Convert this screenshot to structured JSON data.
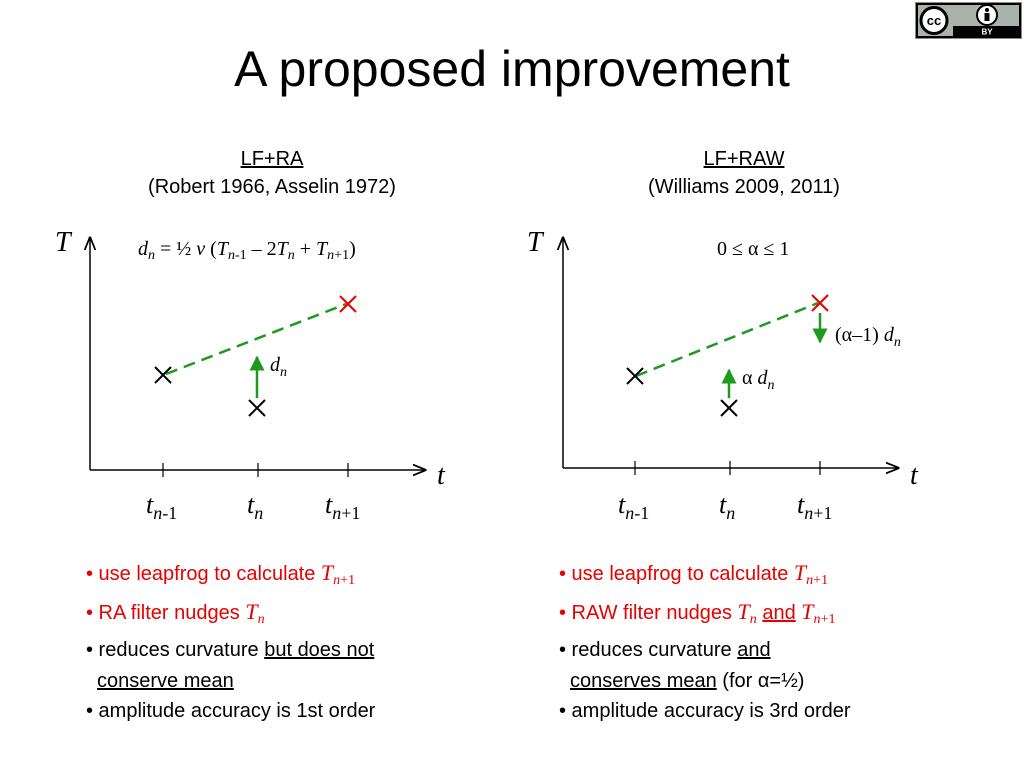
{
  "title": "A proposed improvement",
  "license": {
    "cc": "cc",
    "by": "BY",
    "icon": "person-icon"
  },
  "left": {
    "name": "LF+RA",
    "citation": "(Robert 1966, Asselin 1972)",
    "y_axis_label": "T",
    "x_axis_label": "t",
    "formula": {
      "d": "d",
      "n": "n",
      "eq": " = ½ ",
      "nu": "ν",
      "open": " (",
      "T1": "T",
      "nm1": "n",
      "m1": "-1",
      "minus": " – 2",
      "T2": "T",
      "n2": "n",
      "plus": " + ",
      "T3": "T",
      "n3": "n",
      "p1": "+1",
      "close": ")"
    },
    "arrow_label": {
      "d": "d",
      "n": "n"
    },
    "ticks": [
      {
        "t": "t",
        "n": "n",
        "suffix": "-1"
      },
      {
        "t": "t",
        "n": "n",
        "suffix": ""
      },
      {
        "t": "t",
        "n": "n",
        "suffix": "+1"
      }
    ],
    "bullets": {
      "b1": "• use leapfrog to calculate ",
      "b1_T": "T",
      "b1_n": "n",
      "b1_s": "+1",
      "b2": "• RA filter nudges ",
      "b2_T": "T",
      "b2_n": "n",
      "b3": "• reduces curvature ",
      "b3_u": "but does not",
      "b3b_u": "conserve mean",
      "b4": "• amplitude accuracy is 1st order"
    }
  },
  "right": {
    "name": "LF+RAW",
    "citation": "(Williams 2009, 2011)",
    "y_axis_label": "T",
    "x_axis_label": "t",
    "formula": "0 ≤ α ≤ 1",
    "upper_label": {
      "text": "(α–1) ",
      "d": "d",
      "n": "n"
    },
    "lower_label": {
      "text": "α ",
      "d": "d",
      "n": "n"
    },
    "ticks": [
      {
        "t": "t",
        "n": "n",
        "suffix": "-1"
      },
      {
        "t": "t",
        "n": "n",
        "suffix": ""
      },
      {
        "t": "t",
        "n": "n",
        "suffix": "+1"
      }
    ],
    "bullets": {
      "b1": "• use leapfrog to calculate ",
      "b1_T": "T",
      "b1_n": "n",
      "b1_s": "+1",
      "b2": "• RAW filter nudges ",
      "b2_T": "T",
      "b2_n": "n",
      "b2_and": "and",
      "b2_T2": "T",
      "b2_n2": "n",
      "b2_s2": "+1",
      "b3": "• reduces curvature ",
      "b3_u": "and",
      "b3b_u": "conserves mean",
      "b3b_rest": " (for α=½)",
      "b4": "• amplitude accuracy is 3rd order"
    }
  },
  "colors": {
    "dashed_line": "#1f9a1f",
    "arrow": "#1f9a1f",
    "red_cross": "#e60000",
    "black_cross": "#000000",
    "bullet_red": "#e60000"
  }
}
